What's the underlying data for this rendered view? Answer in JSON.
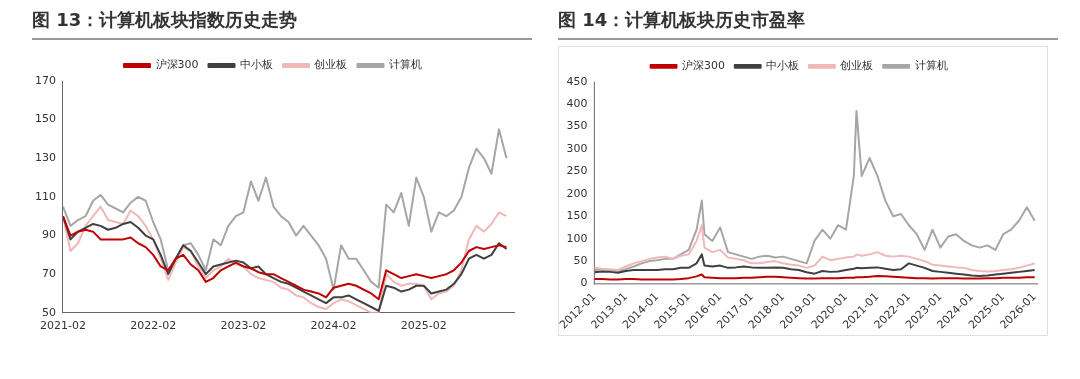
{
  "chart_data": [
    {
      "type": "line",
      "title": "图 13：计算机板块指数历史走势",
      "legend": "top",
      "grid": false,
      "marker": "none",
      "line_style": "solid",
      "x": [
        "2021-02",
        "2021-03",
        "2021-04",
        "2021-05",
        "2021-06",
        "2021-07",
        "2021-08",
        "2021-09",
        "2021-10",
        "2021-11",
        "2021-12",
        "2022-01",
        "2022-02",
        "2022-03",
        "2022-04",
        "2022-05",
        "2022-06",
        "2022-07",
        "2022-08",
        "2022-09",
        "2022-10",
        "2022-11",
        "2022-12",
        "2023-01",
        "2023-02",
        "2023-03",
        "2023-04",
        "2023-05",
        "2023-06",
        "2023-07",
        "2023-08",
        "2023-09",
        "2023-10",
        "2023-11",
        "2023-12",
        "2024-01",
        "2024-02",
        "2024-03",
        "2024-04",
        "2024-05",
        "2024-06",
        "2024-07",
        "2024-08",
        "2024-09",
        "2024-10",
        "2024-11",
        "2024-12",
        "2025-01",
        "2025-02",
        "2025-03",
        "2025-04",
        "2025-05",
        "2025-06",
        "2025-07",
        "2025-08",
        "2025-09",
        "2025-10",
        "2025-11",
        "2025-12",
        "2026-01"
      ],
      "xlim": [
        "2021-02",
        "2026-02"
      ],
      "xticks": [
        "2021-02",
        "2022-02",
        "2023-02",
        "2024-02",
        "2025-02"
      ],
      "ylim": [
        50,
        170
      ],
      "yticks": [
        50,
        70,
        90,
        110,
        130,
        150,
        170
      ],
      "series": [
        {
          "name": "沪深300",
          "color": "#c00000",
          "values": [
            100,
            90,
            92,
            93,
            92,
            88,
            88,
            88,
            88,
            89,
            86,
            84,
            80,
            74,
            72,
            78,
            80,
            75,
            72,
            66,
            68,
            72,
            74,
            76,
            74,
            73,
            71,
            70,
            70,
            68,
            66,
            64,
            62,
            61,
            60,
            58,
            63,
            64,
            65,
            64,
            62,
            60,
            57,
            72,
            70,
            68,
            69,
            70,
            69,
            68,
            69,
            70,
            72,
            76,
            82,
            84,
            83,
            84,
            85,
            84
          ]
        },
        {
          "name": "中小板",
          "color": "#404040",
          "values": [
            100,
            88,
            92,
            94,
            96,
            95,
            93,
            94,
            96,
            97,
            94,
            90,
            88,
            80,
            70,
            78,
            85,
            82,
            76,
            70,
            74,
            75,
            76,
            77,
            76,
            73,
            74,
            70,
            68,
            66,
            65,
            63,
            61,
            59,
            57,
            55,
            58,
            58,
            59,
            57,
            55,
            53,
            51,
            64,
            63,
            61,
            62,
            64,
            64,
            60,
            61,
            62,
            65,
            70,
            78,
            80,
            78,
            80,
            86,
            83
          ]
        },
        {
          "name": "创业板",
          "color": "#f0b8b8",
          "values": [
            100,
            82,
            86,
            95,
            100,
            105,
            98,
            97,
            96,
            103,
            100,
            95,
            88,
            78,
            67,
            76,
            84,
            82,
            74,
            68,
            72,
            74,
            78,
            75,
            74,
            70,
            68,
            67,
            66,
            63,
            62,
            59,
            58,
            55,
            53,
            52,
            55,
            57,
            56,
            54,
            52,
            50,
            50,
            70,
            66,
            64,
            65,
            65,
            64,
            57,
            60,
            61,
            64,
            72,
            88,
            95,
            92,
            96,
            102,
            100
          ]
        },
        {
          "name": "计算机",
          "color": "#a6a6a6",
          "values": [
            105,
            95,
            98,
            100,
            108,
            111,
            106,
            104,
            102,
            107,
            110,
            108,
            97,
            88,
            72,
            78,
            85,
            86,
            80,
            72,
            88,
            85,
            95,
            100,
            102,
            118,
            108,
            120,
            105,
            100,
            97,
            90,
            95,
            90,
            85,
            78,
            62,
            85,
            78,
            78,
            72,
            66,
            63,
            106,
            102,
            112,
            95,
            120,
            110,
            92,
            102,
            100,
            103,
            110,
            125,
            135,
            130,
            122,
            145,
            130
          ]
        }
      ]
    },
    {
      "type": "line",
      "title": "图 14：计算机板块历史市盈率",
      "legend": "top",
      "grid": false,
      "marker": "none",
      "line_style": "solid",
      "x": [
        "2012-01",
        "2012-04",
        "2012-07",
        "2012-10",
        "2013-01",
        "2013-04",
        "2013-07",
        "2013-10",
        "2014-01",
        "2014-04",
        "2014-07",
        "2014-10",
        "2015-01",
        "2015-04",
        "2015-06",
        "2015-07",
        "2015-10",
        "2016-01",
        "2016-04",
        "2016-07",
        "2016-10",
        "2017-01",
        "2017-04",
        "2017-07",
        "2017-10",
        "2018-01",
        "2018-04",
        "2018-07",
        "2018-10",
        "2019-01",
        "2019-04",
        "2019-07",
        "2019-10",
        "2020-01",
        "2020-04",
        "2020-05",
        "2020-07",
        "2020-10",
        "2021-01",
        "2021-04",
        "2021-07",
        "2021-10",
        "2022-01",
        "2022-04",
        "2022-07",
        "2022-10",
        "2023-01",
        "2023-04",
        "2023-07",
        "2023-10",
        "2024-01",
        "2024-04",
        "2024-07",
        "2024-10",
        "2025-01",
        "2025-04",
        "2025-07",
        "2025-10",
        "2026-01"
      ],
      "xlim": [
        "2012-01",
        "2026-02"
      ],
      "xticks": [
        "2012-01",
        "2013-01",
        "2014-01",
        "2015-01",
        "2016-01",
        "2017-01",
        "2018-01",
        "2019-01",
        "2020-01",
        "2021-01",
        "2022-01",
        "2023-01",
        "2024-01",
        "2025-01",
        "2026-01"
      ],
      "ylim": [
        0,
        450
      ],
      "yticks": [
        0,
        50,
        100,
        150,
        200,
        250,
        300,
        350,
        400,
        450
      ],
      "series": [
        {
          "name": "沪深300",
          "color": "#c00000",
          "values": [
            10,
            10,
            9,
            9,
            10,
            10,
            9,
            9,
            9,
            9,
            9,
            10,
            12,
            16,
            20,
            14,
            13,
            12,
            12,
            12,
            13,
            13,
            14,
            15,
            15,
            14,
            13,
            12,
            11,
            11,
            12,
            12,
            12,
            13,
            13,
            14,
            14,
            15,
            17,
            16,
            15,
            14,
            13,
            12,
            12,
            11,
            12,
            12,
            12,
            11,
            11,
            11,
            12,
            12,
            13,
            13,
            13,
            14,
            14
          ]
        },
        {
          "name": "中小板",
          "color": "#404040",
          "values": [
            25,
            27,
            26,
            24,
            28,
            30,
            30,
            30,
            30,
            32,
            32,
            35,
            35,
            45,
            65,
            40,
            38,
            40,
            35,
            36,
            38,
            36,
            35,
            35,
            36,
            35,
            32,
            30,
            25,
            22,
            28,
            26,
            27,
            30,
            33,
            35,
            34,
            35,
            36,
            33,
            30,
            32,
            45,
            40,
            35,
            28,
            26,
            24,
            22,
            20,
            18,
            17,
            18,
            20,
            22,
            24,
            26,
            28,
            30
          ]
        },
        {
          "name": "创业板",
          "color": "#f0b8b8",
          "values": [
            35,
            33,
            32,
            30,
            38,
            45,
            50,
            55,
            58,
            60,
            55,
            62,
            65,
            95,
            130,
            80,
            70,
            75,
            58,
            55,
            52,
            45,
            45,
            48,
            50,
            45,
            42,
            40,
            35,
            40,
            60,
            52,
            55,
            58,
            60,
            65,
            62,
            65,
            70,
            62,
            60,
            62,
            60,
            55,
            50,
            42,
            40,
            38,
            36,
            35,
            30,
            28,
            27,
            28,
            30,
            32,
            35,
            40,
            45
          ]
        },
        {
          "name": "计算机",
          "color": "#a6a6a6",
          "values": [
            30,
            32,
            30,
            28,
            32,
            38,
            45,
            50,
            52,
            55,
            55,
            65,
            75,
            120,
            185,
            110,
            95,
            125,
            70,
            65,
            60,
            55,
            60,
            62,
            58,
            60,
            55,
            50,
            45,
            95,
            120,
            100,
            130,
            120,
            240,
            385,
            240,
            280,
            240,
            185,
            150,
            155,
            130,
            110,
            75,
            120,
            80,
            105,
            110,
            95,
            85,
            80,
            85,
            75,
            110,
            120,
            140,
            170,
            140
          ]
        }
      ]
    }
  ]
}
